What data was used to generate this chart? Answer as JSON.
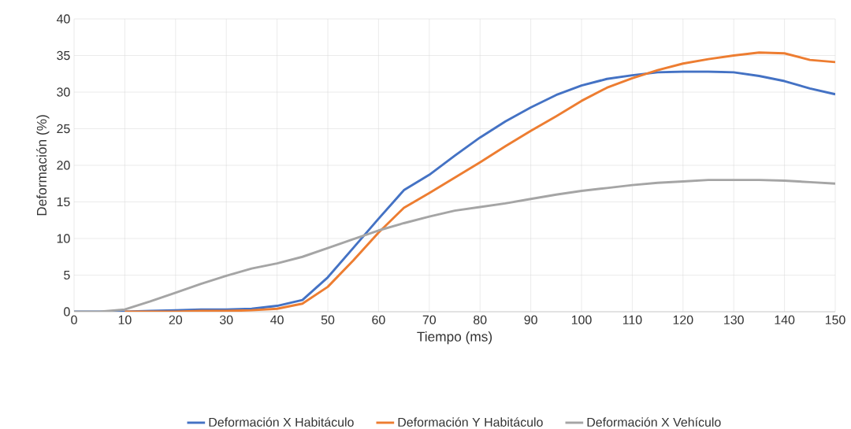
{
  "chart_data": {
    "type": "line",
    "xlabel": "Tiempo (ms)",
    "ylabel": "Deformación (%)",
    "x": [
      0,
      5,
      10,
      15,
      20,
      25,
      30,
      35,
      40,
      45,
      50,
      55,
      60,
      65,
      70,
      75,
      80,
      85,
      90,
      95,
      100,
      105,
      110,
      115,
      120,
      125,
      130,
      135,
      140,
      145,
      150
    ],
    "series": [
      {
        "name": "Deformación X Habitáculo",
        "color": "#4472c4",
        "values": [
          0,
          0,
          0,
          0.1,
          0.2,
          0.3,
          0.3,
          0.4,
          0.8,
          1.6,
          4.7,
          8.7,
          12.7,
          16.6,
          18.7,
          21.3,
          23.8,
          26.0,
          27.9,
          29.6,
          30.9,
          31.8,
          32.3,
          32.7,
          32.8,
          32.8,
          32.7,
          32.2,
          31.5,
          30.5,
          29.7
        ]
      },
      {
        "name": "Deformación Y Habitáculo",
        "color": "#ed7d31",
        "values": [
          null,
          null,
          0,
          0,
          0,
          0.1,
          0.1,
          0.2,
          0.4,
          1.1,
          3.4,
          7.0,
          10.8,
          14.2,
          16.2,
          18.3,
          20.4,
          22.6,
          24.7,
          26.7,
          28.8,
          30.6,
          31.9,
          33.0,
          33.9,
          34.5,
          35.0,
          35.4,
          35.3,
          34.4,
          34.1
        ]
      },
      {
        "name": "Deformación X Vehículo",
        "color": "#a5a5a5",
        "values": [
          0,
          0,
          0.3,
          1.4,
          2.6,
          3.8,
          4.9,
          5.9,
          6.6,
          7.5,
          8.7,
          9.9,
          11.1,
          12.1,
          13.0,
          13.8,
          14.3,
          14.8,
          15.4,
          16.0,
          16.5,
          16.9,
          17.3,
          17.6,
          17.8,
          18.0,
          18.0,
          18.0,
          17.9,
          17.7,
          17.5
        ]
      }
    ],
    "xlim": [
      0,
      150
    ],
    "ylim": [
      0,
      40
    ],
    "xticks": [
      0,
      10,
      20,
      30,
      40,
      50,
      60,
      70,
      80,
      90,
      100,
      110,
      120,
      130,
      140,
      150
    ],
    "yticks": [
      0,
      5,
      10,
      15,
      20,
      25,
      30,
      35,
      40
    ],
    "grid": true,
    "legend": "bottom"
  }
}
